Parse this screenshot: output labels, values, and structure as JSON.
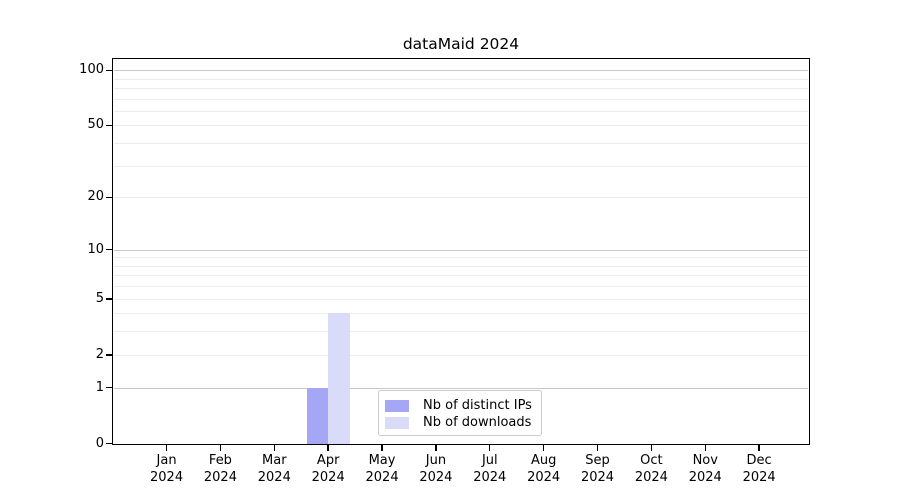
{
  "chart_data": {
    "type": "bar",
    "title": "dataMaid 2024",
    "categories": [
      "Jan",
      "Feb",
      "Mar",
      "Apr",
      "May",
      "Jun",
      "Jul",
      "Aug",
      "Sep",
      "Oct",
      "Nov",
      "Dec"
    ],
    "category_year": "2024",
    "series": [
      {
        "name": "Nb of distinct IPs",
        "color": "#a6a6f6",
        "values": [
          0,
          0,
          0,
          1,
          0,
          0,
          0,
          0,
          0,
          0,
          0,
          0
        ]
      },
      {
        "name": "Nb of downloads",
        "color": "#dadaf9",
        "values": [
          0,
          0,
          0,
          4,
          0,
          0,
          0,
          0,
          0,
          0,
          0,
          0
        ]
      }
    ],
    "y_scale": "log1p",
    "y_ticks": [
      0,
      1,
      2,
      5,
      10,
      20,
      50,
      100
    ],
    "ylim": [
      0,
      115
    ],
    "grid": {
      "major_values": [
        1,
        10,
        100
      ],
      "minor_values": [
        2,
        3,
        4,
        5,
        6,
        7,
        8,
        9,
        20,
        30,
        40,
        50,
        60,
        70,
        80,
        90
      ],
      "major_color": "#c9c9c9",
      "minor_color": "#ededed"
    },
    "legend_position": "bottom-center",
    "xlabel": "",
    "ylabel": ""
  }
}
